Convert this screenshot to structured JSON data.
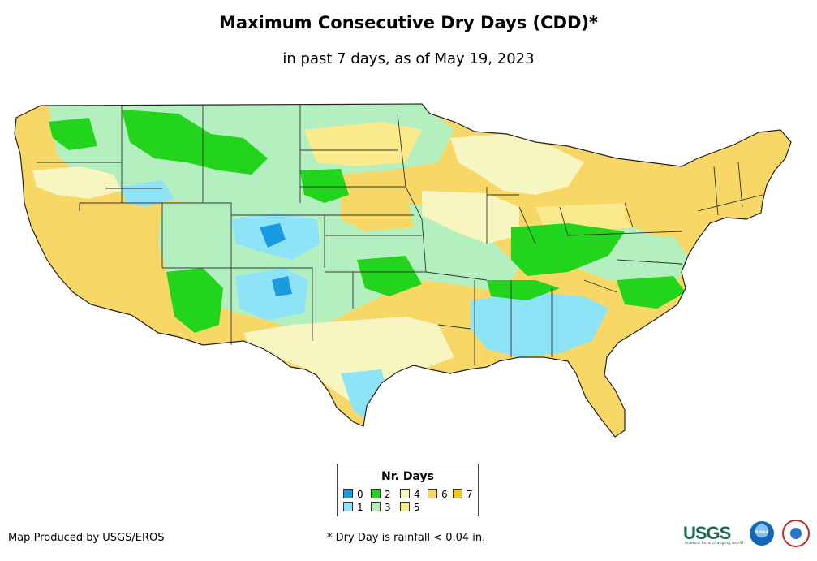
{
  "title": "Maximum Consecutive Dry Days (CDD)*",
  "subtitle": "in past 7 days, as of May 19, 2023",
  "legend": {
    "title": "Nr. Days",
    "items": [
      {
        "label": "0",
        "color": "#1a9be0"
      },
      {
        "label": "1",
        "color": "#8fe3f7"
      },
      {
        "label": "2",
        "color": "#22d41c"
      },
      {
        "label": "3",
        "color": "#b4f0bf"
      },
      {
        "label": "4",
        "color": "#f7f5c0"
      },
      {
        "label": "5",
        "color": "#faea8c"
      },
      {
        "label": "6",
        "color": "#f7d765"
      },
      {
        "label": "7",
        "color": "#f5c518"
      }
    ]
  },
  "credit": "Map Produced by USGS/EROS",
  "footnote": "* Dry Day is rainfall < 0.04 in.",
  "logos": {
    "usgs": "USGS",
    "usgs_tagline": "science for a changing world",
    "noaa": "noaa"
  }
}
